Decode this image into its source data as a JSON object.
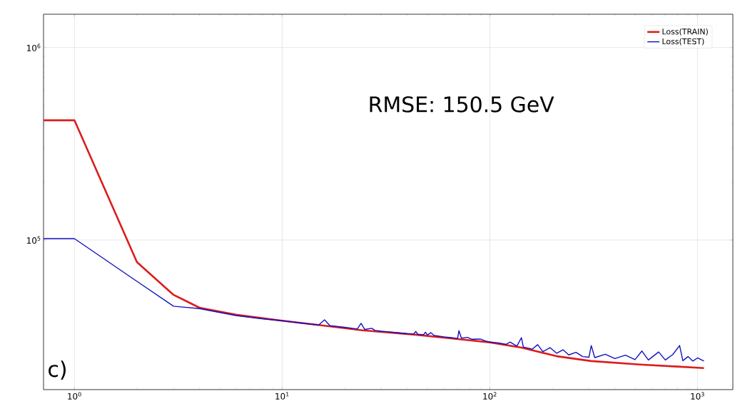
{
  "chart_data": {
    "type": "line",
    "xlabel": null,
    "log": "xy",
    "grid": true,
    "legend": "top right",
    "marker": "none",
    "line_style": "solid",
    "xlim": [
      0.71,
      1480
    ],
    "ylim": [
      16700,
      1490000
    ],
    "xticks": [
      {
        "value": 1,
        "label": "10$^{0}$"
      },
      {
        "value": 10,
        "label": "10$^{1}$"
      },
      {
        "value": 100,
        "label": "10$^{2}$"
      },
      {
        "value": 1000,
        "label": "10$^{3}$"
      }
    ],
    "yticks": [
      {
        "value": 100000,
        "label": "10$^{5}$"
      },
      {
        "value": 1000000,
        "label": "10$^{6}$"
      }
    ],
    "annotations": [
      "RMSE: 150.5 GeV",
      "c)"
    ],
    "series": [
      {
        "name": "Loss(TRAIN)",
        "color": "#dd1c1c",
        "x": [
          0.71,
          1,
          2,
          3,
          4,
          6,
          10,
          16,
          24,
          43,
          70,
          100,
          142,
          210,
          308,
          543,
          800,
          1074
        ],
        "values": [
          419000,
          419000,
          76800,
          51900,
          44500,
          40900,
          38100,
          35900,
          34000,
          32300,
          30600,
          29400,
          27600,
          24900,
          23500,
          22500,
          22000,
          21600
        ]
      },
      {
        "name": "Loss(TEST)",
        "color": "#1010c0",
        "x": [
          0.71,
          1,
          2,
          3,
          4,
          6,
          8,
          10,
          13,
          15,
          16,
          17,
          20,
          23,
          24,
          25,
          27,
          28,
          30,
          32,
          35,
          40,
          43,
          44,
          45,
          48,
          49,
          50,
          52,
          54,
          60,
          65,
          70,
          71,
          73,
          78,
          82,
          90,
          95,
          100,
          110,
          120,
          125,
          135,
          142,
          145,
          160,
          170,
          180,
          195,
          210,
          225,
          240,
          260,
          280,
          300,
          308,
          320,
          360,
          400,
          450,
          500,
          540,
          580,
          650,
          700,
          760,
          820,
          850,
          900,
          950,
          1000,
          1074
        ],
        "values": [
          101700,
          101700,
          61000,
          45300,
          44000,
          40500,
          39000,
          38100,
          36800,
          36200,
          38500,
          35900,
          35200,
          34500,
          36900,
          34300,
          34800,
          33900,
          33600,
          33400,
          33100,
          32600,
          32500,
          33500,
          32400,
          32200,
          33200,
          32100,
          33000,
          31900,
          31400,
          31100,
          30800,
          33800,
          30900,
          31200,
          30500,
          30600,
          29900,
          29500,
          29200,
          28700,
          29500,
          28100,
          31100,
          27800,
          27100,
          28600,
          26300,
          27600,
          25800,
          26900,
          25300,
          26100,
          24800,
          24600,
          28300,
          24500,
          25500,
          24200,
          25200,
          23900,
          26500,
          23800,
          26200,
          23800,
          25400,
          28300,
          23600,
          24800,
          23500,
          24400,
          23500
        ]
      }
    ]
  }
}
